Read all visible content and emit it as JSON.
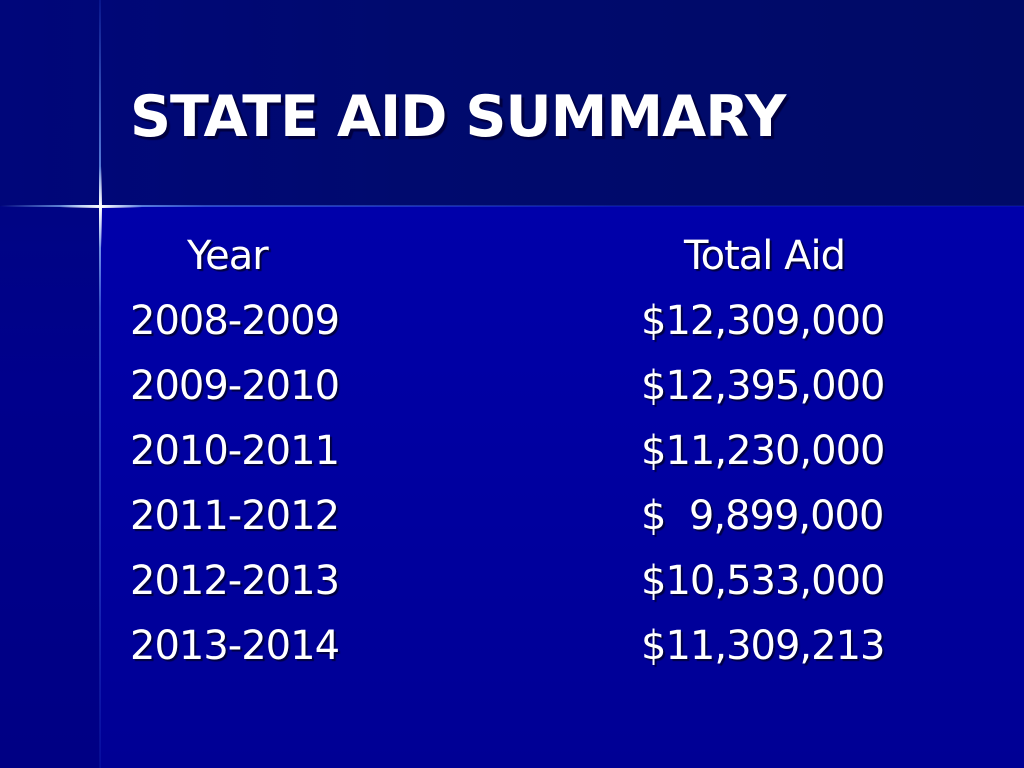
{
  "slide": {
    "title": "STATE AID SUMMARY",
    "table": {
      "headers": {
        "year": "Year",
        "total": "Total Aid"
      },
      "rows": [
        {
          "year": "2008-2009",
          "total": "$12,309,000"
        },
        {
          "year": "2009-2010",
          "total": "$12,395,000"
        },
        {
          "year": "2010-2011",
          "total": "$11,230,000"
        },
        {
          "year": "2011-2012",
          "total": "$  9,899,000"
        },
        {
          "year": "2012-2013",
          "total": "$10,533,000"
        },
        {
          "year": "2013-2014",
          "total": "$11,309,213"
        }
      ]
    }
  },
  "colors": {
    "background": "#0000a6",
    "header_band": "#000a6e",
    "text": "#ffffff"
  }
}
